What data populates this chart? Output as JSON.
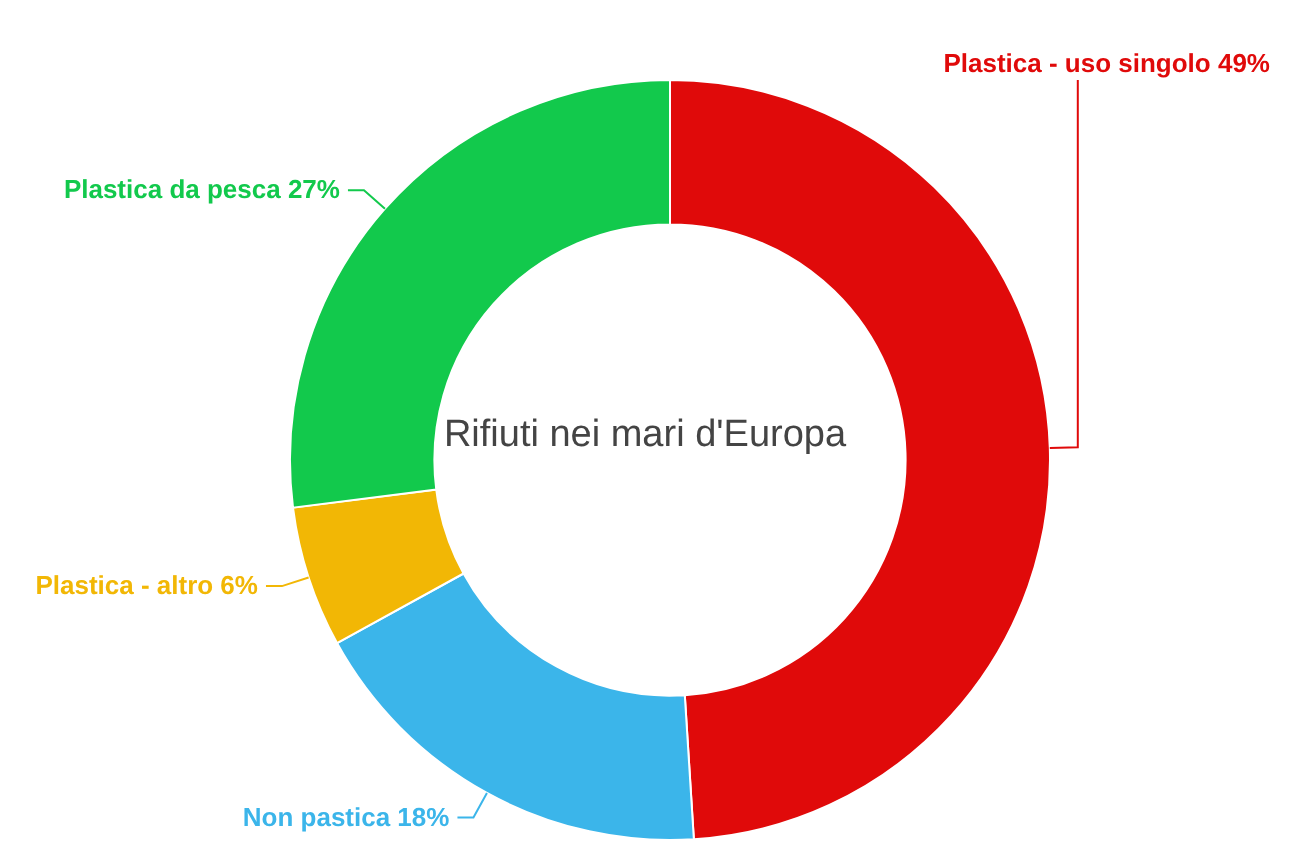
{
  "chart_data": {
    "type": "donut",
    "title": "Rifiuti nei mari d'Europa",
    "categories": [
      "Plastica - uso singolo",
      "Non pastica",
      "Plastica - altro",
      "Plastica da pesca"
    ],
    "values": [
      49,
      18,
      6,
      27
    ],
    "value_labels": [
      "49%",
      "18%",
      "6%",
      "27%"
    ],
    "colors": [
      "#e00a0a",
      "#3bb5ea",
      "#f2b705",
      "#12c94c"
    ],
    "legend": false
  }
}
